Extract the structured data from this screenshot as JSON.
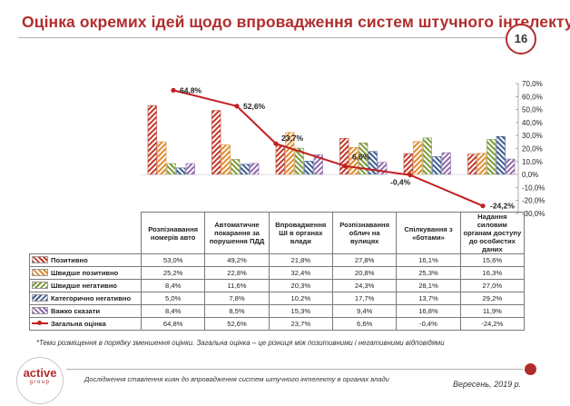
{
  "header": {
    "title": "Оцінка окремих ідей щодо впровадження систем штучного інтелекту",
    "page_number": "16"
  },
  "chart_data": {
    "type": "bar",
    "categories": [
      "Розпізнавання номерів авто",
      "Автоматичне покарання за порушення ПДД",
      "Впровадження ШІ в органах влади",
      "Розпізнавання облич на вулицях",
      "Спілкування з «ботами»",
      "Надання силовим органам доступу до особистих даних"
    ],
    "series": [
      {
        "name": "Позитивно",
        "values": [
          53.0,
          49.2,
          21.8,
          27.8,
          16.1,
          15.6
        ],
        "color": "#c0392b",
        "pattern": "red-hatch"
      },
      {
        "name": "Швидше позитивно",
        "values": [
          25.2,
          22.8,
          32.4,
          20.8,
          25.3,
          16.3
        ],
        "color": "#e08a2c",
        "pattern": "orange-hatch"
      },
      {
        "name": "Швидше негативно",
        "values": [
          8.4,
          11.6,
          20.3,
          24.3,
          28.1,
          27.0
        ],
        "color": "#7a9a3a",
        "pattern": "green-hatch"
      },
      {
        "name": "Категорично негативно",
        "values": [
          5.0,
          7.8,
          10.2,
          17.7,
          13.7,
          29.2
        ],
        "color": "#3e5a8e",
        "pattern": "blue-hatch"
      },
      {
        "name": "Важко сказати",
        "values": [
          8.4,
          8.5,
          15.3,
          9.4,
          16.8,
          11.9
        ],
        "color": "#8e6aa8",
        "pattern": "purple-hatch"
      }
    ],
    "line_series": {
      "name": "Загальна оцінка",
      "values": [
        64.8,
        52.6,
        23.7,
        6.6,
        -0.4,
        -24.2
      ],
      "labels": [
        "64,8%",
        "52,6%",
        "23,7%",
        "6,6%",
        "-0,4%",
        "-24,2%"
      ],
      "color": "#c0201f"
    },
    "ylim": [
      -30,
      70
    ],
    "y_ticks": [
      "70,0%",
      "60,0%",
      "50,0%",
      "40,0%",
      "30,0%",
      "20,0%",
      "10,0%",
      "0,0%",
      "-10,0%",
      "-20,0%",
      "-30,0%"
    ],
    "legend": "table-left",
    "table_rows": [
      {
        "label": "Позитивно",
        "cells": [
          "53,0%",
          "49,2%",
          "21,8%",
          "27,8%",
          "16,1%",
          "15,6%"
        ]
      },
      {
        "label": "Швидше позитивно",
        "cells": [
          "25,2%",
          "22,8%",
          "32,4%",
          "20,8%",
          "25,3%",
          "16,3%"
        ]
      },
      {
        "label": "Швидше негативно",
        "cells": [
          "8,4%",
          "11,6%",
          "20,3%",
          "24,3%",
          "28,1%",
          "27,0%"
        ]
      },
      {
        "label": "Категорично негативно",
        "cells": [
          "5,0%",
          "7,8%",
          "10,2%",
          "17,7%",
          "13,7%",
          "29,2%"
        ]
      },
      {
        "label": "Важко сказати",
        "cells": [
          "8,4%",
          "8,5%",
          "15,3%",
          "9,4%",
          "16,8%",
          "11,9%"
        ]
      },
      {
        "label": "Загальна оцінка",
        "cells": [
          "64,8%",
          "52,6%",
          "23,7%",
          "6,6%",
          "-0,4%",
          "-24,2%"
        ]
      }
    ],
    "table_headers": [
      "Розпізнавання номерів авто",
      "Автоматичне покарання за порушення ПДД",
      "Впровадження ШІ в органах влади",
      "Розпізнавання облич на вулицях",
      "Спілкування з «ботами»",
      "Надання силовим органам доступу до особистих даних"
    ]
  },
  "footnote": "*Теми розміщення в порядку зменшення оцінки. Загальна оцінка – це різниця між позитивними і негативними відповідями",
  "footer": {
    "logo_name": "active",
    "logo_sub": "group",
    "study": "Дослідження ставлення  киян до впровадження систем штучного інтелекту в органах влади",
    "date": "Вересень, 2019 р."
  }
}
